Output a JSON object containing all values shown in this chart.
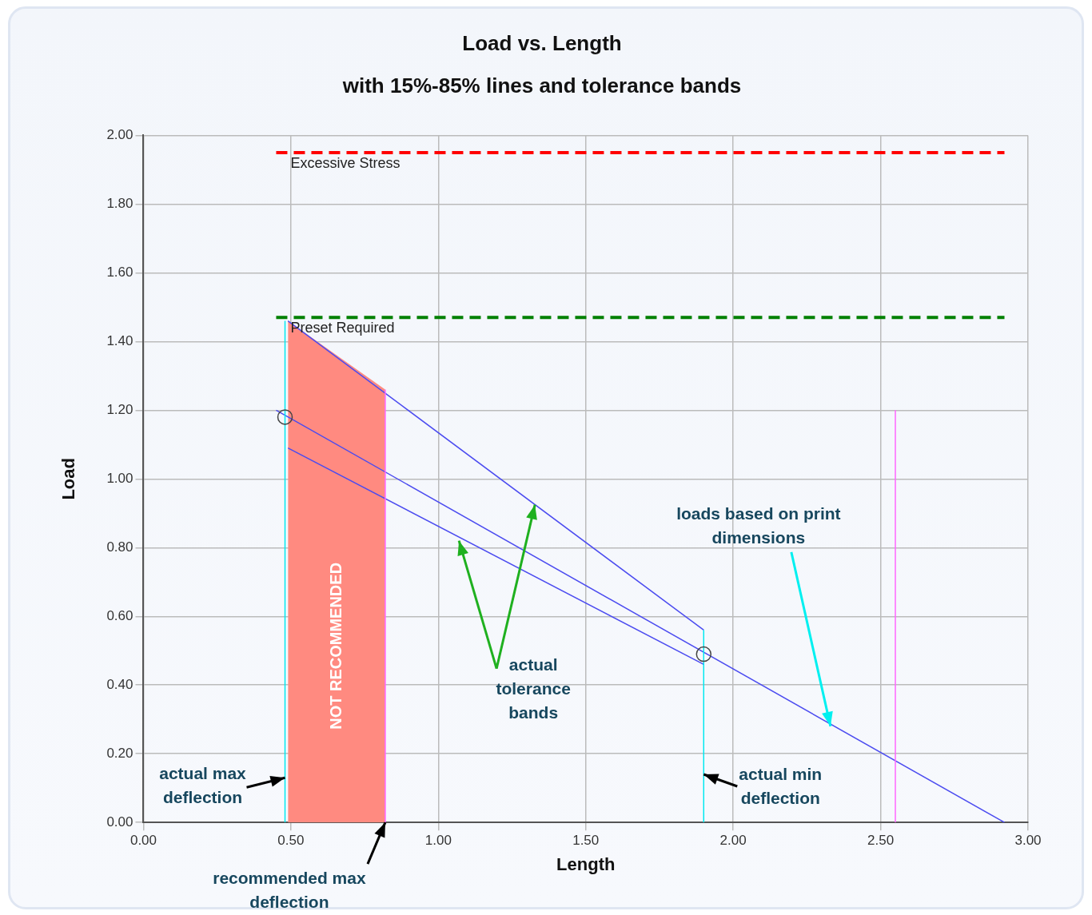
{
  "chart_data": {
    "type": "line",
    "title": "Load vs. Length",
    "subtitle": "with 15%-85% lines and tolerance bands",
    "xlabel": "Length",
    "ylabel": "Load",
    "xlim": [
      0,
      3
    ],
    "ylim": [
      0,
      2
    ],
    "xticks": [
      {
        "value": 0,
        "label": "0.00"
      },
      {
        "value": 0.5,
        "label": "0.50"
      },
      {
        "value": 1,
        "label": "1.00"
      },
      {
        "value": 1.5,
        "label": "1.50"
      },
      {
        "value": 2,
        "label": "2.00"
      },
      {
        "value": 2.5,
        "label": "2.50"
      },
      {
        "value": 3,
        "label": "3.00"
      }
    ],
    "yticks": [
      {
        "value": 0,
        "label": "0.00"
      },
      {
        "value": 0.2,
        "label": "0.20"
      },
      {
        "value": 0.4,
        "label": "0.40"
      },
      {
        "value": 0.6,
        "label": "0.60"
      },
      {
        "value": 0.8,
        "label": "0.80"
      },
      {
        "value": 1,
        "label": "1.00"
      },
      {
        "value": 1.2,
        "label": "1.20"
      },
      {
        "value": 1.4,
        "label": "1.40"
      },
      {
        "value": 1.6,
        "label": "1.60"
      },
      {
        "value": 1.8,
        "label": "1.80"
      },
      {
        "value": 2,
        "label": "2.00"
      }
    ],
    "grid": true,
    "legend": false,
    "series": [
      {
        "name": "Excessive Stress",
        "type": "line",
        "line_style": "dashed",
        "marker": "none",
        "color": "#ff0000",
        "x": [
          0.45,
          2.92
        ],
        "values": [
          1.95,
          1.95
        ]
      },
      {
        "name": "Preset Required",
        "type": "line",
        "line_style": "dashed",
        "marker": "none",
        "color": "#008000",
        "x": [
          0.45,
          2.92
        ],
        "values": [
          1.47,
          1.47
        ]
      },
      {
        "name": "NOT RECOMMENDED",
        "type": "area",
        "color": "#ff8a80",
        "x": [
          0.49,
          0.82
        ],
        "values": [
          1.46,
          1.26
        ]
      },
      {
        "type": "line",
        "line_style": "solid",
        "marker": "none",
        "color": "#4b4bf0",
        "x": [
          0.49,
          1.9
        ],
        "values": [
          1.46,
          0.56
        ]
      },
      {
        "type": "line",
        "line_style": "solid",
        "marker": "none",
        "color": "#4b4bf0",
        "x": [
          0.45,
          2.92
        ],
        "values": [
          1.2,
          0
        ]
      },
      {
        "type": "line",
        "line_style": "solid",
        "marker": "none",
        "color": "#4b4bf0",
        "x": [
          0.49,
          1.9
        ],
        "values": [
          1.09,
          0.46
        ]
      },
      {
        "type": "line",
        "line_style": "solid",
        "marker": "none",
        "color": "#00e8f0",
        "x": [
          0.48,
          0.48
        ],
        "values": [
          0,
          1.46
        ]
      },
      {
        "type": "line",
        "line_style": "solid",
        "marker": "none",
        "color": "#00e8f0",
        "x": [
          1.9,
          1.9
        ],
        "values": [
          0,
          0.56
        ]
      },
      {
        "type": "line",
        "line_style": "solid",
        "marker": "none",
        "color": "#ff66ff",
        "x": [
          0.82,
          0.82
        ],
        "values": [
          0,
          1.26
        ]
      },
      {
        "type": "line",
        "line_style": "solid",
        "marker": "none",
        "color": "#ff66ff",
        "x": [
          2.55,
          2.55
        ],
        "values": [
          0,
          1.2
        ]
      },
      {
        "type": "scatter",
        "marker": "circle",
        "color": "#444444",
        "x": [
          0.48,
          1.9
        ],
        "values": [
          1.18,
          0.49
        ]
      }
    ],
    "annotations": [
      {
        "text": "actual max deflection",
        "x": 0.48,
        "y": 0.13
      },
      {
        "text": "recommended max deflection",
        "x": 0.82,
        "y": 0
      },
      {
        "text": "actual min deflection",
        "x": 1.9,
        "y": 0.14
      },
      {
        "text": "actual tolerance bands",
        "x": 1.07,
        "y": 0.82
      },
      {
        "text": "loads based on print dimensions",
        "x": 2.33,
        "y": 0.28
      }
    ]
  }
}
